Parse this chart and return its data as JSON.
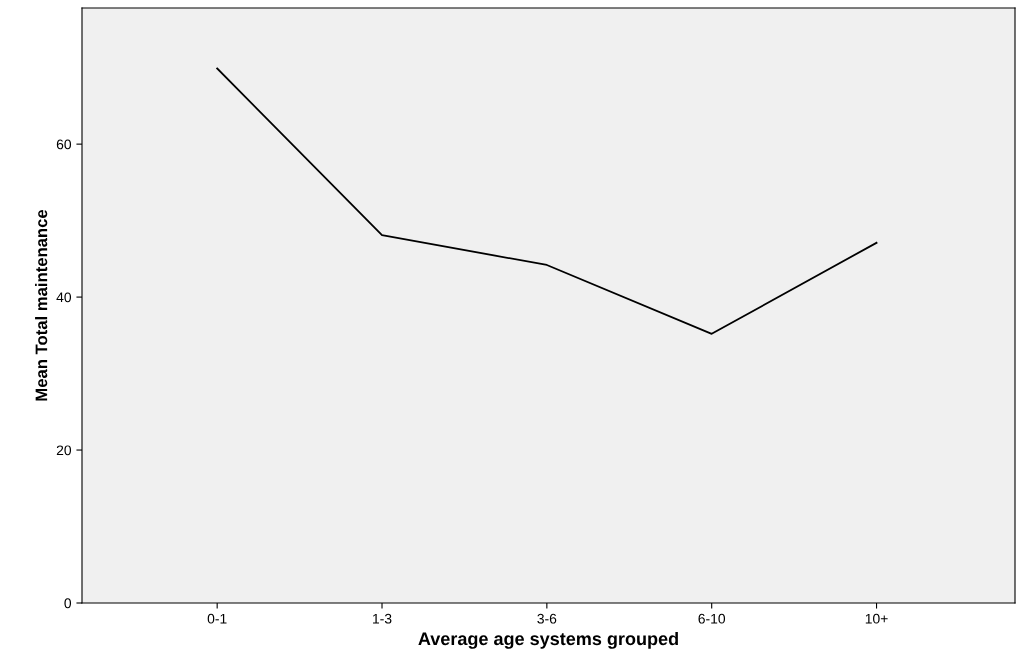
{
  "chart_data": {
    "type": "line",
    "xlabel": "Average age systems grouped",
    "ylabel": "Mean Total maintenance",
    "categories": [
      "0-1",
      "1-3",
      "3-6",
      "6-10",
      "10+"
    ],
    "series": [
      {
        "color": "#000000",
        "values": [
          69.9,
          48.1,
          44.2,
          35.2,
          47.1
        ]
      }
    ],
    "ylim": [
      0,
      77.8
    ],
    "yticks": [
      0,
      20,
      40,
      60
    ],
    "grid": false,
    "legend": false,
    "marker": "none",
    "line_style": "solid"
  }
}
